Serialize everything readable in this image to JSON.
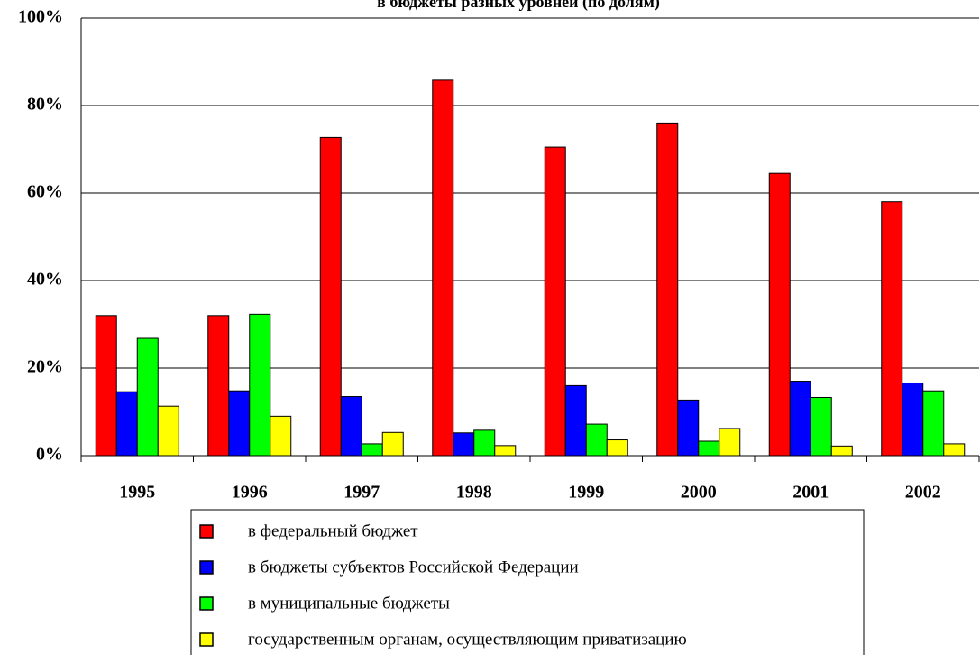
{
  "chart_data": {
    "type": "bar",
    "title": "в бюджеты разных уровней (по долям)",
    "categories": [
      "1995",
      "1996",
      "1997",
      "1998",
      "1999",
      "2000",
      "2001",
      "2002"
    ],
    "series": [
      {
        "name": "в федеральный бюджет",
        "color": "#ff0000",
        "values": [
          32,
          32,
          72.7,
          85.8,
          70.5,
          76,
          64.5,
          58
        ]
      },
      {
        "name": "в бюджеты субъектов Российской Федерации",
        "color": "#0000ff",
        "values": [
          14.6,
          14.8,
          13.5,
          5.2,
          16,
          12.7,
          17,
          16.6
        ]
      },
      {
        "name": "в муниципальные бюджеты",
        "color": "#00ff00",
        "values": [
          26.8,
          32.3,
          2.7,
          5.8,
          7.2,
          3.3,
          13.3,
          14.8
        ]
      },
      {
        "name": "государственным органам, осуществляющим приватизацию",
        "color": "#ffff00",
        "values": [
          11.3,
          9,
          5.3,
          2.3,
          3.6,
          6.2,
          2.2,
          2.7
        ]
      }
    ],
    "ylim": [
      0,
      100
    ],
    "yticks": [
      {
        "value": 0,
        "label": "0%"
      },
      {
        "value": 20,
        "label": "20%"
      },
      {
        "value": 40,
        "label": "40%"
      },
      {
        "value": 60,
        "label": "60%"
      },
      {
        "value": 80,
        "label": "80%"
      },
      {
        "value": 100,
        "label": "100%"
      }
    ],
    "grid": true,
    "legend": "bottom"
  }
}
